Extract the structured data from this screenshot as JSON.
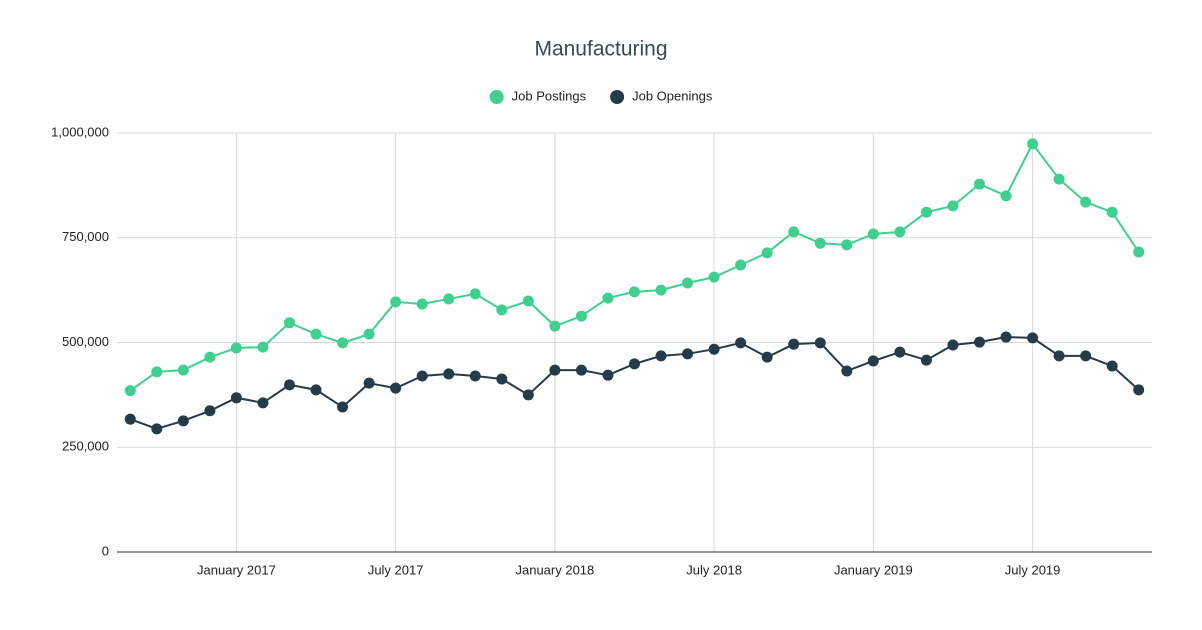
{
  "chart_data": {
    "type": "line",
    "title": "Manufacturing",
    "x": [
      "2016-09",
      "2016-10",
      "2016-11",
      "2016-12",
      "2017-01",
      "2017-02",
      "2017-03",
      "2017-04",
      "2017-05",
      "2017-06",
      "2017-07",
      "2017-08",
      "2017-09",
      "2017-10",
      "2017-11",
      "2017-12",
      "2018-01",
      "2018-02",
      "2018-03",
      "2018-04",
      "2018-05",
      "2018-06",
      "2018-07",
      "2018-08",
      "2018-09",
      "2018-10",
      "2018-11",
      "2018-12",
      "2019-01",
      "2019-02",
      "2019-03",
      "2019-04",
      "2019-05",
      "2019-06",
      "2019-07",
      "2019-08",
      "2019-09",
      "2019-10",
      "2019-11"
    ],
    "series": [
      {
        "name": "Job Postings",
        "color": "#3fcf8e",
        "values": [
          385000,
          430000,
          434000,
          465000,
          487000,
          489000,
          547000,
          520000,
          499000,
          520000,
          597000,
          592000,
          604000,
          616000,
          578000,
          599000,
          539000,
          563000,
          606000,
          621000,
          625000,
          642000,
          656000,
          685000,
          714000,
          764000,
          737000,
          733000,
          759000,
          764000,
          811000,
          826000,
          878000,
          850000,
          974000,
          890000,
          835000,
          811000,
          716000
        ]
      },
      {
        "name": "Job Openings",
        "color": "#243b4a",
        "values": [
          317000,
          294000,
          313000,
          337000,
          368000,
          356000,
          399000,
          387000,
          346000,
          403000,
          391000,
          420000,
          425000,
          420000,
          413000,
          375000,
          434000,
          434000,
          422000,
          449000,
          468000,
          473000,
          484000,
          499000,
          465000,
          496000,
          499000,
          432000,
          456000,
          477000,
          458000,
          494000,
          501000,
          513000,
          511000,
          468000,
          468000,
          444000,
          387000
        ]
      }
    ],
    "xticks": [
      {
        "value": "2017-01",
        "label": "January 2017"
      },
      {
        "value": "2017-07",
        "label": "July 2017"
      },
      {
        "value": "2018-01",
        "label": "January 2018"
      },
      {
        "value": "2018-07",
        "label": "July 2018"
      },
      {
        "value": "2019-01",
        "label": "January 2019"
      },
      {
        "value": "2019-07",
        "label": "July 2019"
      }
    ],
    "ylim": [
      0,
      1000000
    ],
    "yticks": [
      0,
      {
        "value": 250000,
        "label": "250,000"
      },
      {
        "value": 500000,
        "label": "500,000"
      },
      {
        "value": 750000,
        "label": "750,000"
      },
      {
        "value": 1000000,
        "label": "1,000,000"
      }
    ],
    "grid": true,
    "legend": "top"
  }
}
